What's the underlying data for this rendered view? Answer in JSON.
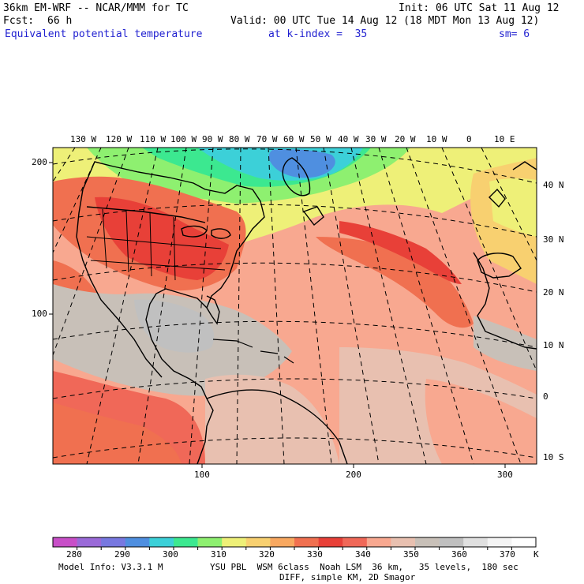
{
  "header": {
    "model_title": "36km EM-WRF -- NCAR/MMM for TC",
    "init": "Init: 06 UTC Sat 11 Aug 12",
    "fcst_label": "Fcst:",
    "fcst_value": "66 h",
    "valid": "Valid: 00 UTC Tue 14 Aug 12 (18 MDT Mon 13 Aug 12)",
    "field": "Equivalent potential temperature",
    "level": "at k-index =  35",
    "smoothing": "sm= 6"
  },
  "map": {
    "top_lon_labels": [
      "130 W",
      "120 W",
      "110 W",
      "100 W",
      "90 W",
      "80 W",
      "70 W",
      "60 W",
      "50 W",
      "40 W",
      "30 W",
      "20 W",
      "10 W",
      "0",
      "10 E"
    ],
    "right_lat_labels": [
      "40 N",
      "30 N",
      "20 N",
      "10 N",
      "0",
      "10 S"
    ],
    "left_grid_labels": [
      "200",
      "100"
    ],
    "bottom_grid_labels": [
      "100",
      "200",
      "300"
    ]
  },
  "colorbar": {
    "tick_labels": [
      "280",
      "290",
      "300",
      "310",
      "320",
      "330",
      "340",
      "350",
      "360",
      "370"
    ],
    "unit": "K",
    "colors": [
      "#c84fc8",
      "#9a6ad8",
      "#7878e0",
      "#4f8fe0",
      "#3cd0d8",
      "#3ce890",
      "#8ef070",
      "#eef078",
      "#f8d070",
      "#f8a860",
      "#f07050",
      "#e84038",
      "#f06858",
      "#f8a890",
      "#e8c0b0",
      "#c8c0b8",
      "#c0c0c0",
      "#e0e0e0",
      "#f4f4f4",
      "#ffffff"
    ]
  },
  "footer": {
    "model_info": "Model Info: V3.3.1 M",
    "physics": "YSU PBL  WSM 6class  Noah LSM  36 km,   35 levels,  180 sec",
    "diffusion": "DIFF, simple KM, 2D Smagor"
  }
}
